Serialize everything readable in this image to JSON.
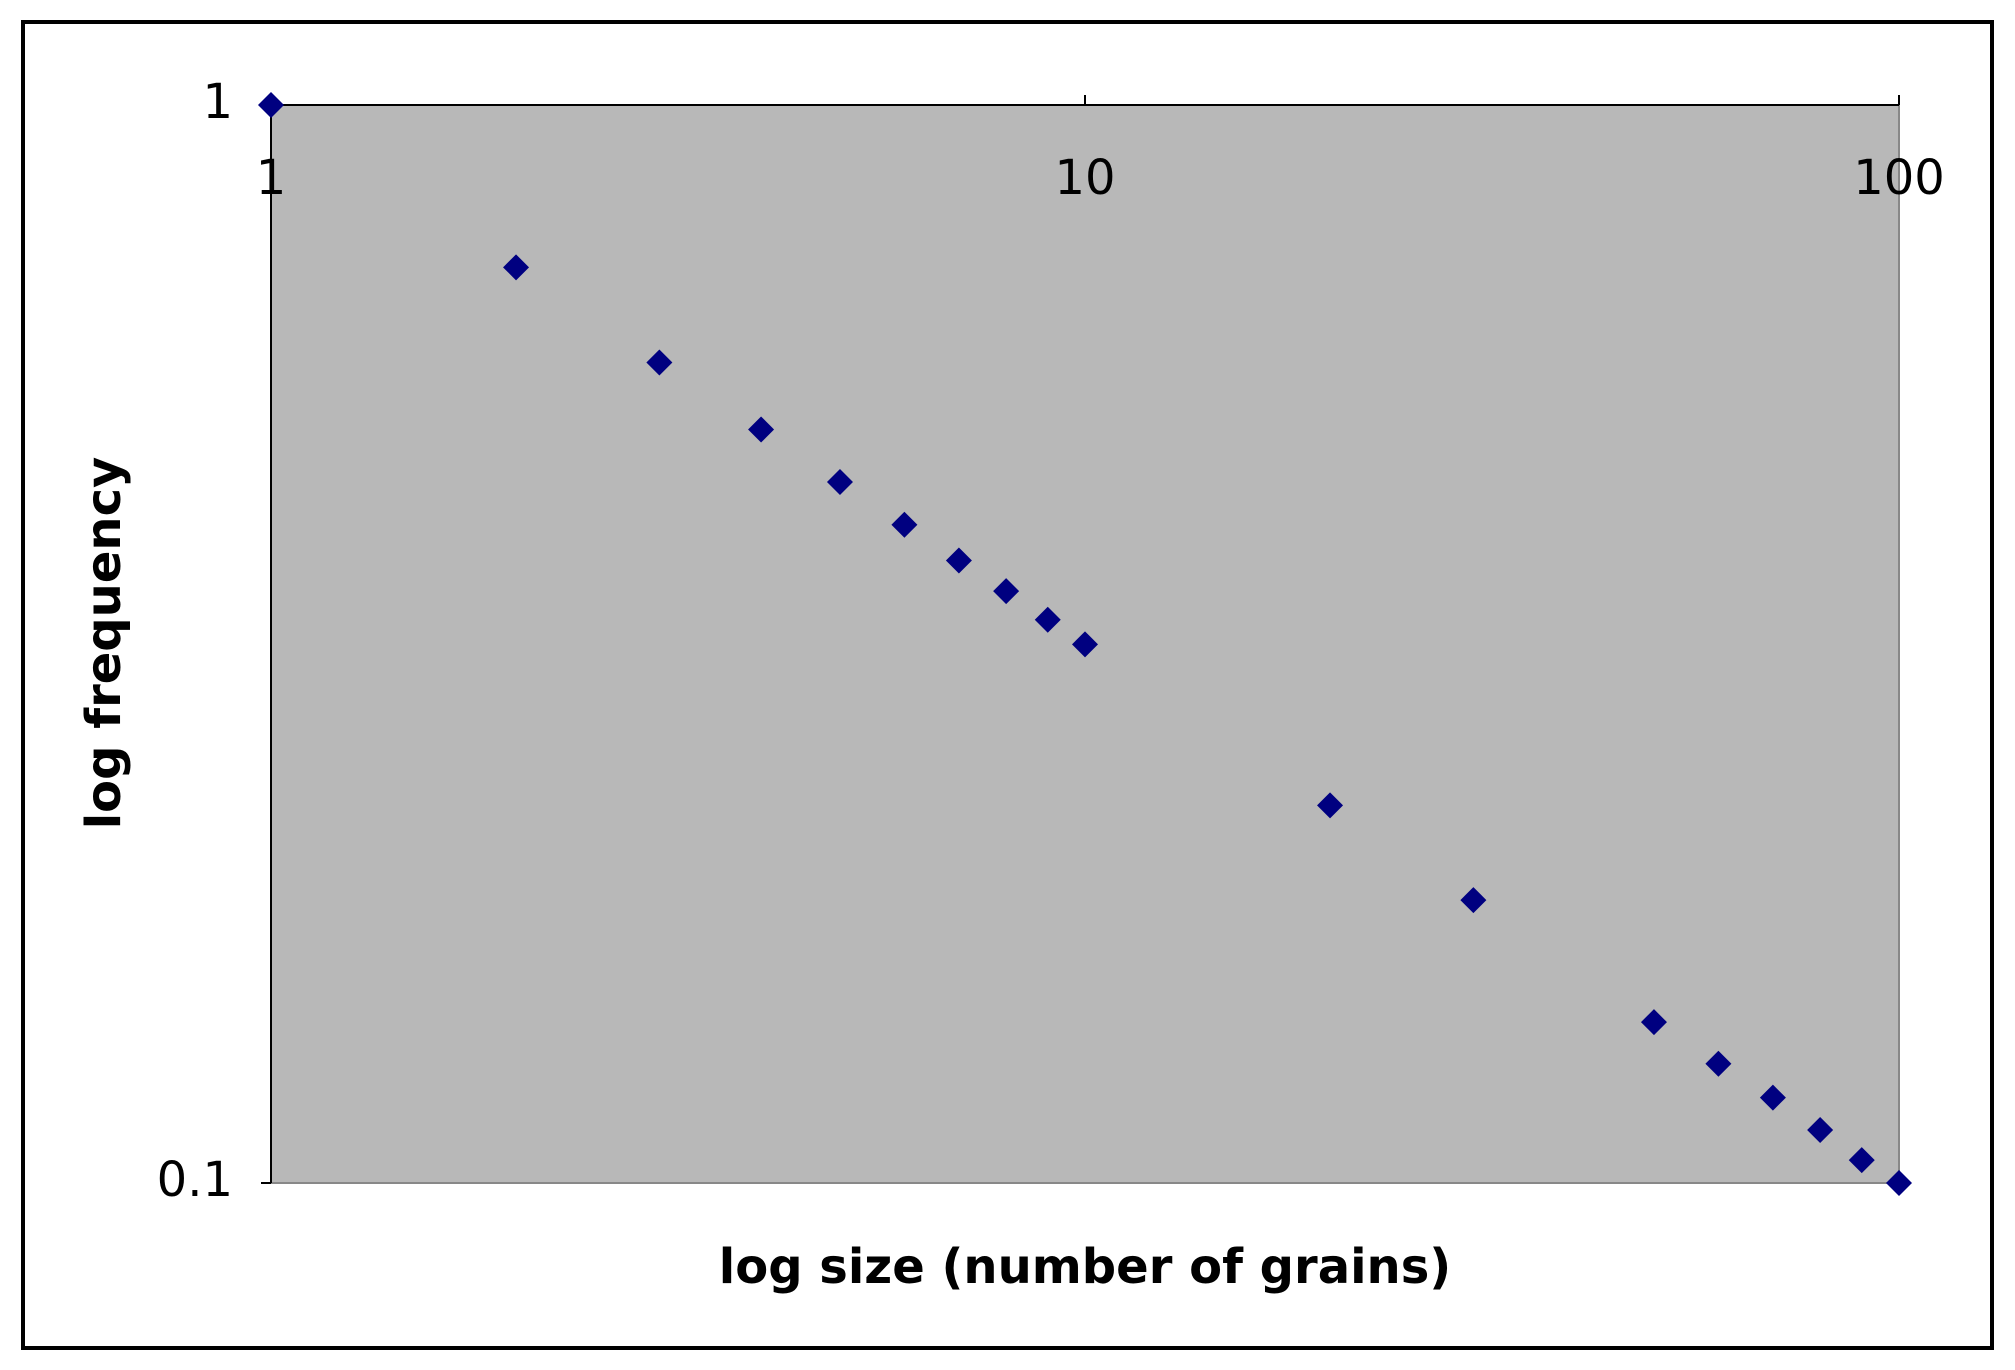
{
  "chart_data": {
    "type": "scatter",
    "x_label": "log size (number of grains)",
    "y_label": "log frequency",
    "x": [
      1,
      2,
      3,
      4,
      5,
      6,
      7,
      8,
      9,
      10,
      20,
      30,
      50,
      60,
      70,
      80,
      90,
      100
    ],
    "values": [
      1,
      0.707,
      0.577,
      0.5,
      0.447,
      0.408,
      0.378,
      0.354,
      0.333,
      0.316,
      0.224,
      0.183,
      0.141,
      0.129,
      0.12,
      0.112,
      0.105,
      0.1
    ],
    "color": "#000080",
    "plot_background": "#b8b8b8",
    "xlim": [
      1,
      100
    ],
    "ylim": [
      0.1,
      1
    ],
    "xticks": [
      1,
      10,
      100
    ],
    "yticks": [
      0.1,
      1
    ],
    "x_log": true,
    "y_log": true,
    "grid": false
  }
}
